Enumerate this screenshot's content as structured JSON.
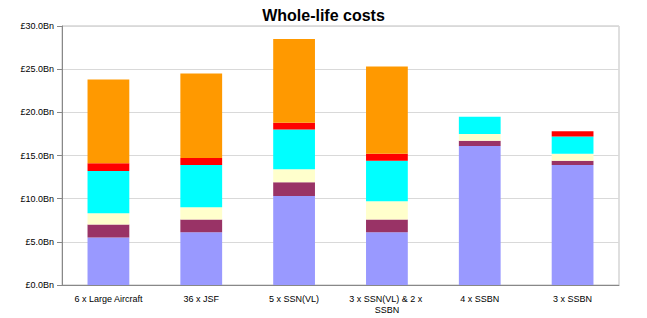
{
  "chart_data": {
    "type": "bar",
    "title": "Whole-life costs",
    "categories": [
      "6 x Large Aircraft",
      "36 x JSF",
      "5 x SSN(VL)",
      "3 x SSN(VL) & 2 x SSBN",
      "4 x SSBN",
      "3 x SSBN"
    ],
    "series": [
      {
        "color": "#9999ff",
        "values": [
          5.5,
          6.1,
          10.3,
          6.1,
          16.1,
          13.9
        ]
      },
      {
        "color": "#993366",
        "values": [
          1.5,
          1.5,
          1.6,
          1.5,
          0.6,
          0.5
        ]
      },
      {
        "color": "#ffffcc",
        "values": [
          1.3,
          1.4,
          1.5,
          2.1,
          0.8,
          0.8
        ]
      },
      {
        "color": "#00ffff",
        "values": [
          4.9,
          4.9,
          4.6,
          4.7,
          2.0,
          2.0
        ]
      },
      {
        "color": "#ff0000",
        "values": [
          0.9,
          0.8,
          0.8,
          0.8,
          0,
          0.6
        ]
      },
      {
        "color": "#ff9900",
        "values": [
          9.7,
          9.8,
          9.7,
          10.1,
          0,
          0
        ]
      }
    ],
    "stacked": true,
    "ylim": [
      0,
      30
    ],
    "yticks": [
      {
        "value": 0,
        "label": "£0.0Bn"
      },
      {
        "value": 5,
        "label": "£5.0Bn"
      },
      {
        "value": 10,
        "label": "£10.0Bn"
      },
      {
        "value": 15,
        "label": "£15.0Bn"
      },
      {
        "value": 20,
        "label": "£20.0Bn"
      },
      {
        "value": 25,
        "label": "£25.0Bn"
      },
      {
        "value": 30,
        "label": "£30.0Bn"
      }
    ],
    "grid": true
  }
}
